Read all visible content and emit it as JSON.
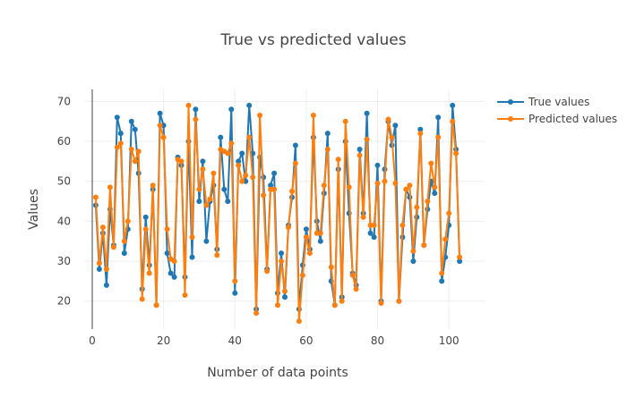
{
  "chart_data": {
    "type": "line",
    "title": "True vs predicted values",
    "xlabel": "Number of data points",
    "ylabel": "Values",
    "xlim": [
      -2,
      110
    ],
    "ylim": [
      13,
      73
    ],
    "xticks": [
      0,
      20,
      40,
      60,
      80,
      100
    ],
    "yticks": [
      20,
      30,
      40,
      50,
      60,
      70
    ],
    "grid": true,
    "legend_position": "top-right",
    "series": [
      {
        "name": "True values",
        "color": "#1f77b4",
        "x": [
          1,
          2,
          3,
          4,
          5,
          6,
          7,
          8,
          9,
          10,
          11,
          12,
          13,
          14,
          15,
          16,
          17,
          18,
          19,
          20,
          21,
          22,
          23,
          24,
          25,
          26,
          27,
          28,
          29,
          30,
          31,
          32,
          33,
          34,
          35,
          36,
          37,
          38,
          39,
          40,
          41,
          42,
          43,
          44,
          45,
          46,
          47,
          48,
          49,
          50,
          51,
          52,
          53,
          54,
          55,
          56,
          57,
          58,
          59,
          60,
          61,
          62,
          63,
          64,
          65,
          66,
          67,
          68,
          69,
          70,
          71,
          72,
          73,
          74,
          75,
          76,
          77,
          78,
          79,
          80,
          81,
          82,
          83,
          84,
          85,
          86,
          87,
          88,
          89,
          90,
          91,
          92,
          93,
          94,
          95,
          96,
          97,
          98,
          99,
          100,
          101,
          102,
          103
        ],
        "values": [
          44,
          28,
          37,
          24,
          43,
          34,
          66,
          62,
          32,
          38,
          65,
          63,
          52,
          23,
          41,
          29,
          48,
          19,
          67,
          64,
          32,
          27,
          26,
          56,
          54,
          26,
          60,
          31,
          68,
          45,
          55,
          35,
          45,
          49,
          33,
          61,
          48,
          45,
          68,
          22,
          55,
          57,
          50,
          69,
          57,
          18,
          56,
          51,
          28,
          49,
          52,
          22,
          32,
          21,
          39,
          46,
          59,
          18,
          29,
          38,
          33,
          61,
          40,
          35,
          47,
          62,
          25,
          19,
          53,
          21,
          60,
          42,
          27,
          24,
          58,
          42,
          67,
          37,
          36,
          54,
          20,
          53,
          65,
          59,
          64,
          20,
          36,
          48,
          46,
          30,
          41,
          63,
          34,
          43,
          50,
          47,
          66,
          25,
          31,
          39,
          69,
          58,
          30
        ]
      },
      {
        "name": "Predicted values",
        "color": "#ff7f0e",
        "x": [
          1,
          2,
          3,
          4,
          5,
          6,
          7,
          8,
          9,
          10,
          11,
          12,
          13,
          14,
          15,
          16,
          17,
          18,
          19,
          20,
          21,
          22,
          23,
          24,
          25,
          26,
          27,
          28,
          29,
          30,
          31,
          32,
          33,
          34,
          35,
          36,
          37,
          38,
          39,
          40,
          41,
          42,
          43,
          44,
          45,
          46,
          47,
          48,
          49,
          50,
          51,
          52,
          53,
          54,
          55,
          56,
          57,
          58,
          59,
          60,
          61,
          62,
          63,
          64,
          65,
          66,
          67,
          68,
          69,
          70,
          71,
          72,
          73,
          74,
          75,
          76,
          77,
          78,
          79,
          80,
          81,
          82,
          83,
          84,
          85,
          86,
          87,
          88,
          89,
          90,
          91,
          92,
          93,
          94,
          95,
          96,
          97,
          98,
          99,
          100,
          101,
          102,
          103
        ],
        "values": [
          46,
          29.5,
          38.5,
          28,
          48.5,
          33.5,
          58.5,
          59.5,
          35,
          40,
          58,
          55,
          57.5,
          20.5,
          38,
          27,
          49,
          19,
          64,
          61,
          38,
          30.5,
          30,
          55.5,
          55,
          21.5,
          69,
          36,
          65.5,
          48,
          53,
          44,
          45.5,
          52,
          31.5,
          58,
          57.5,
          57,
          59.5,
          25,
          54,
          50,
          51.5,
          61,
          51,
          17,
          66.5,
          46.5,
          27.5,
          48,
          48,
          19,
          30,
          22.5,
          38.5,
          47.5,
          54.5,
          15,
          26.5,
          36,
          32,
          66.5,
          37,
          37,
          49,
          58,
          28.5,
          19,
          55.5,
          20,
          65,
          48.5,
          26.5,
          23,
          56.5,
          41,
          60.5,
          39,
          39,
          49.5,
          19.5,
          50,
          65.5,
          61,
          49.5,
          20,
          39,
          48,
          49,
          32.5,
          43.5,
          62,
          34,
          45,
          54.5,
          48.5,
          61,
          27,
          35.5,
          42,
          65,
          57,
          31
        ]
      }
    ]
  }
}
